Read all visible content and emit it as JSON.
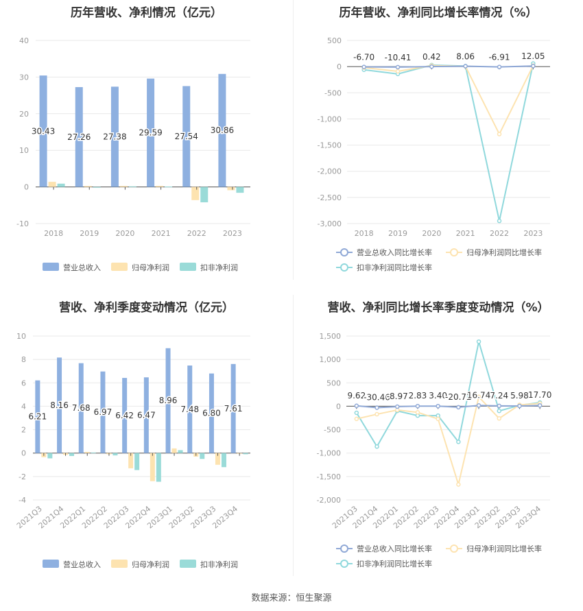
{
  "footer": "数据来源：恒生聚源",
  "colors": {
    "revenue": "#8eb0e0",
    "net_profit": "#fde3b0",
    "deducted": "#9adbd8",
    "revenue_line": "#8fa8d6",
    "net_profit_line": "#fde3b0",
    "deducted_line": "#8fd8dc",
    "grid": "#e8e8e8",
    "axis_text": "#999999"
  },
  "chart_data": [
    {
      "type": "bar",
      "title": "历年营收、净利情况（亿元）",
      "categories": [
        "2018",
        "2019",
        "2020",
        "2021",
        "2022",
        "2023"
      ],
      "ylim": [
        -10,
        40
      ],
      "yticks": [
        "40",
        "30",
        "20",
        "10",
        "0",
        "-10"
      ],
      "ytick_values": [
        40,
        30,
        20,
        10,
        0,
        -10
      ],
      "series": [
        {
          "name": "营业总收入",
          "values": [
            30.43,
            27.26,
            27.38,
            29.59,
            27.54,
            30.86
          ],
          "labels": [
            "30.43",
            "27.26",
            "27.38",
            "29.59",
            "27.54",
            "30.86"
          ]
        },
        {
          "name": "归母净利润",
          "values": [
            1.4,
            0.25,
            0.26,
            0.28,
            -3.6,
            -0.9
          ]
        },
        {
          "name": "扣非净利润",
          "values": [
            0.9,
            -0.2,
            0.15,
            0.1,
            -4.2,
            -1.6
          ]
        }
      ],
      "legend": "bottom"
    },
    {
      "type": "line",
      "title": "历年营收、净利同比增长率情况（%）",
      "categories": [
        "2018",
        "2019",
        "2020",
        "2021",
        "2022",
        "2023"
      ],
      "ylim": [
        -3000,
        500
      ],
      "yticks": [
        "500",
        "0",
        "-500",
        "-1,000",
        "-1,500",
        "-2,000",
        "-2,500",
        "-3,000"
      ],
      "ytick_values": [
        500,
        0,
        -500,
        -1000,
        -1500,
        -2000,
        -2500,
        -3000
      ],
      "series": [
        {
          "name": "营业总收入同比增长率",
          "values": [
            -6.7,
            -10.41,
            0.42,
            8.06,
            -6.91,
            12.05
          ],
          "labels": [
            "-6.70",
            "-10.41",
            "0.42",
            "8.06",
            "-6.91",
            "12.05"
          ]
        },
        {
          "name": "归母净利润同比增长率",
          "values": [
            -20,
            -90,
            20,
            5,
            -1290,
            20
          ]
        },
        {
          "name": "扣非净利润同比增长率",
          "values": [
            -60,
            -140,
            30,
            10,
            -2950,
            60
          ]
        }
      ],
      "legend": "bottom"
    },
    {
      "type": "bar",
      "title": "营收、净利季度变动情况（亿元）",
      "categories": [
        "2021Q3",
        "2021Q4",
        "2022Q1",
        "2022Q2",
        "2022Q3",
        "2022Q4",
        "2023Q1",
        "2023Q2",
        "2023Q3",
        "2023Q4"
      ],
      "ylim": [
        -4,
        10
      ],
      "yticks": [
        "10",
        "8",
        "6",
        "4",
        "2",
        "0",
        "-2",
        "-4"
      ],
      "ytick_values": [
        10,
        8,
        6,
        4,
        2,
        0,
        -2,
        -4
      ],
      "series": [
        {
          "name": "营业总收入",
          "values": [
            6.21,
            8.16,
            7.68,
            6.97,
            6.42,
            6.47,
            8.96,
            7.48,
            6.8,
            7.61
          ],
          "labels": [
            "6.21",
            "8.16",
            "7.68",
            "6.97",
            "6.42",
            "6.47",
            "8.96",
            "7.48",
            "6.80",
            "7.61"
          ]
        },
        {
          "name": "归母净利润",
          "values": [
            -0.35,
            -0.15,
            0.1,
            -0.1,
            -1.3,
            -2.4,
            0.4,
            -0.3,
            -1.0,
            -0.05
          ]
        },
        {
          "name": "扣非净利润",
          "values": [
            -0.45,
            -0.25,
            0.05,
            -0.2,
            -1.45,
            -2.45,
            0.25,
            -0.5,
            -1.2,
            -0.1
          ]
        }
      ],
      "legend": "bottom"
    },
    {
      "type": "line",
      "title": "营收、净利同比增长率季度变动情况（%）",
      "categories": [
        "2021Q3",
        "2021Q4",
        "2022Q1",
        "2022Q2",
        "2022Q3",
        "2022Q4",
        "2023Q1",
        "2023Q2",
        "2023Q3",
        "2023Q4"
      ],
      "ylim": [
        -2000,
        1500
      ],
      "yticks": [
        "1,500",
        "1,000",
        "500",
        "0",
        "-500",
        "-1,000",
        "-1,500",
        "-2,000"
      ],
      "ytick_values": [
        1500,
        1000,
        500,
        0,
        -500,
        -1000,
        -1500,
        -2000
      ],
      "series": [
        {
          "name": "营业总收入同比增长率",
          "values": [
            9.62,
            -30.46,
            -8.97,
            2.83,
            3.4,
            -20.72,
            16.74,
            7.24,
            5.98,
            17.7
          ],
          "labels": [
            "9.62",
            "-30.46",
            "-8.97",
            "2.83",
            "3.40",
            "-20.72",
            "16.74",
            "7.24",
            "5.98",
            "17.70"
          ]
        },
        {
          "name": "归母净利润同比增长率",
          "values": [
            -270,
            -170,
            -80,
            -130,
            -270,
            -1670,
            200,
            -260,
            30,
            60
          ]
        },
        {
          "name": "扣非净利润同比增长率",
          "values": [
            -140,
            -860,
            -100,
            -200,
            -200,
            -760,
            1380,
            -100,
            20,
            80
          ]
        }
      ],
      "legend": "bottom"
    }
  ]
}
